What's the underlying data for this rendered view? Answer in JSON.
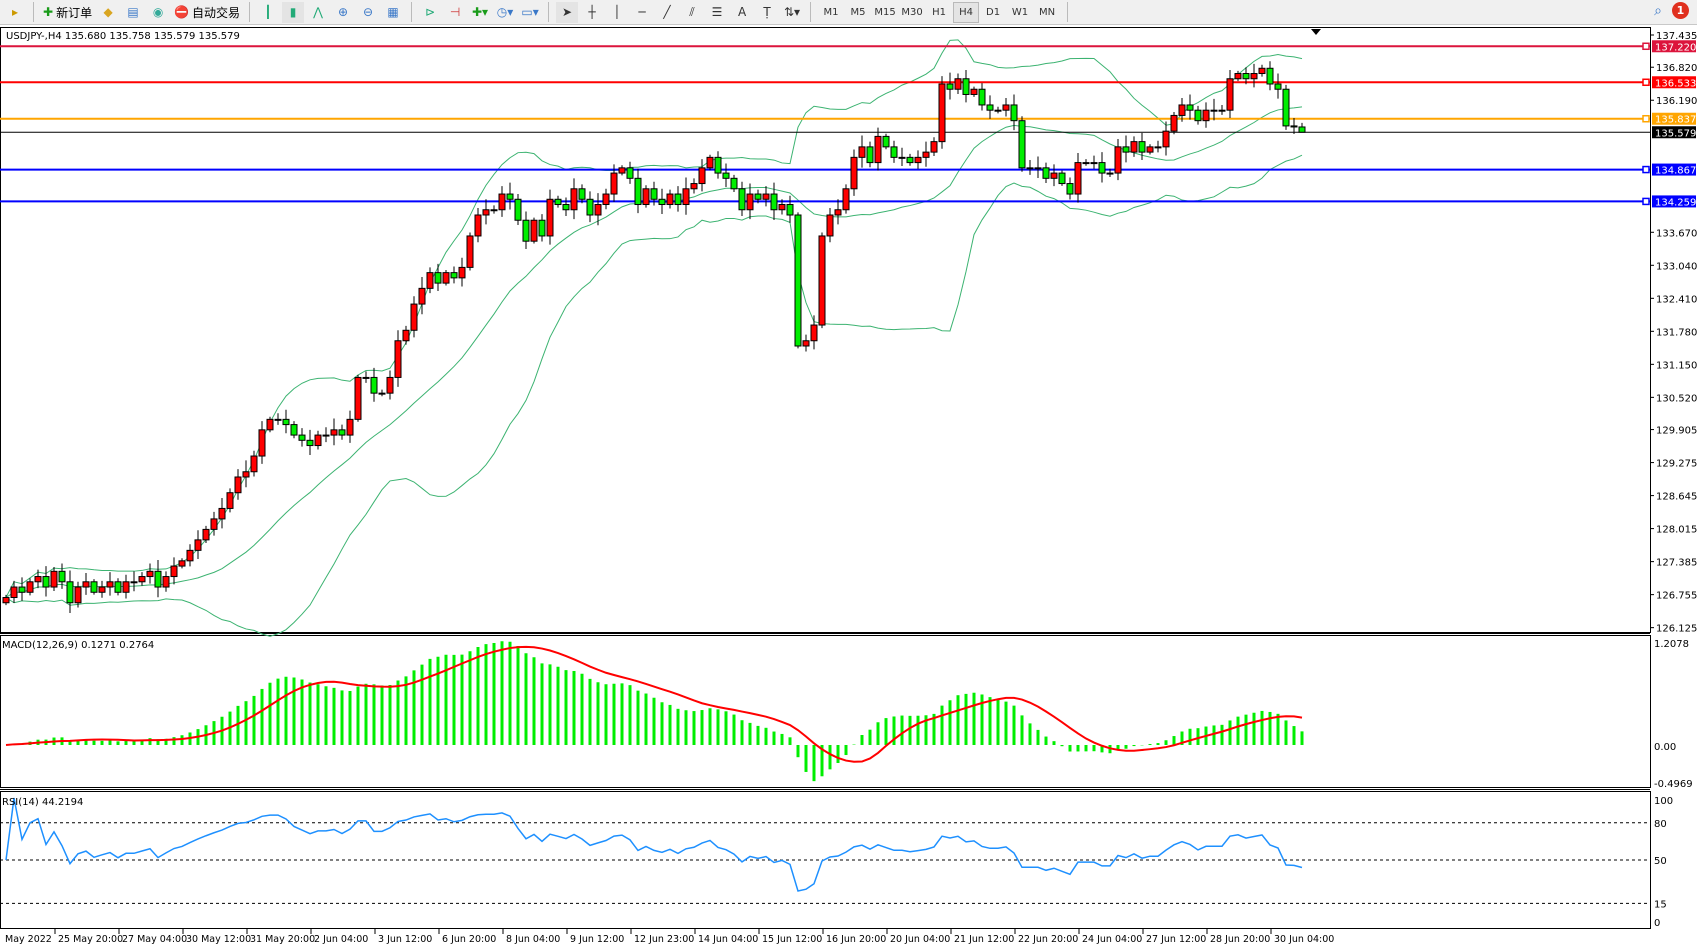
{
  "toolbar": {
    "new_order": "新订单",
    "auto_trading": "自动交易",
    "timeframes": [
      "M1",
      "M5",
      "M15",
      "M30",
      "H1",
      "H4",
      "D1",
      "W1",
      "MN"
    ],
    "active_timeframe": "H4",
    "notification_count": "1"
  },
  "chart": {
    "header": "USDJPY-,H4  135.680 135.758 135.579 135.579",
    "symbol": "USDJPY-",
    "period": "H4",
    "colors": {
      "bull": "#ff0000",
      "bear": "#00ee00",
      "bands": "#3cb371",
      "macd_bars": "#00ee00",
      "macd_signal": "#ff0000",
      "rsi": "#1e90ff"
    }
  },
  "chart_data": [
    {
      "type": "candlestick",
      "last_bar": {
        "open": 135.68,
        "high": 135.758,
        "low": 135.579,
        "close": 135.579
      },
      "closes": [
        126.7,
        126.9,
        126.8,
        127.0,
        127.1,
        126.9,
        127.2,
        127.0,
        126.6,
        126.9,
        127.0,
        126.8,
        126.9,
        127.0,
        126.8,
        127.0,
        127.0,
        127.1,
        127.2,
        126.9,
        127.1,
        127.3,
        127.4,
        127.6,
        127.8,
        128.0,
        128.2,
        128.4,
        128.7,
        129.0,
        129.1,
        129.4,
        129.9,
        130.1,
        130.1,
        130.0,
        129.8,
        129.7,
        129.6,
        129.8,
        129.8,
        129.9,
        129.8,
        130.1,
        130.9,
        130.9,
        130.6,
        130.6,
        130.9,
        131.6,
        131.8,
        132.3,
        132.6,
        132.9,
        132.7,
        132.9,
        132.8,
        133.0,
        133.6,
        134.0,
        134.1,
        134.1,
        134.4,
        134.3,
        133.9,
        133.5,
        133.9,
        133.6,
        134.3,
        134.2,
        134.1,
        134.5,
        134.3,
        134.0,
        134.2,
        134.4,
        134.8,
        134.9,
        134.7,
        134.2,
        134.5,
        134.3,
        134.2,
        134.4,
        134.2,
        134.5,
        134.6,
        134.9,
        135.1,
        134.8,
        134.7,
        134.5,
        134.1,
        134.4,
        134.3,
        134.4,
        134.1,
        134.2,
        134.0,
        131.5,
        131.6,
        131.9,
        133.6,
        134.0,
        134.1,
        134.5,
        135.1,
        135.3,
        135.0,
        135.5,
        135.3,
        135.1,
        135.1,
        135.0,
        135.1,
        135.2,
        135.4,
        136.5,
        136.4,
        136.6,
        136.3,
        136.4,
        136.1,
        136.0,
        136.0,
        136.1,
        135.8,
        134.9,
        134.9,
        134.9,
        134.7,
        134.8,
        134.6,
        134.4,
        135.0,
        135.0,
        135.0,
        134.8,
        134.8,
        135.3,
        135.2,
        135.4,
        135.2,
        135.3,
        135.3,
        135.6,
        135.9,
        136.1,
        136.0,
        135.8,
        136.0,
        136.0,
        136.0,
        136.6,
        136.7,
        136.6,
        136.7,
        136.8,
        136.5,
        136.4,
        135.7,
        135.68,
        135.579
      ],
      "ylim": [
        126.125,
        137.435
      ],
      "y_ticks": [
        "137.435",
        "136.820",
        "136.190",
        "133.670",
        "133.040",
        "132.410",
        "131.780",
        "131.150",
        "130.520",
        "129.905",
        "129.275",
        "128.645",
        "128.015",
        "127.385",
        "126.755",
        "126.125"
      ],
      "x_tick_labels": [
        "May 2022",
        "25 May 20:00",
        "27 May 04:00",
        "30 May 12:00",
        "31 May 20:00",
        "2 Jun 04:00",
        "3 Jun 12:00",
        "6 Jun 20:00",
        "8 Jun 04:00",
        "9 Jun 12:00",
        "12 Jun 23:00",
        "14 Jun 04:00",
        "15 Jun 12:00",
        "16 Jun 20:00",
        "20 Jun 04:00",
        "21 Jun 12:00",
        "22 Jun 20:00",
        "24 Jun 04:00",
        "27 Jun 12:00",
        "28 Jun 20:00",
        "30 Jun 04:00"
      ],
      "indicator": "Bollinger Bands",
      "horizontal_lines": [
        {
          "price": "137.220",
          "color": "#dc143c"
        },
        {
          "price": "136.533",
          "color": "#ff0000"
        },
        {
          "price": "135.837",
          "color": "#ffa500"
        },
        {
          "price": "135.579",
          "color": "#000000"
        },
        {
          "price": "134.867",
          "color": "#0000ff"
        },
        {
          "price": "134.259",
          "color": "#0000ff"
        }
      ]
    },
    {
      "type": "bar+line",
      "title": "MACD(12,26,9) 0.1271 0.2764",
      "ylim": [
        -0.4969,
        1.2078
      ],
      "y_ticks": [
        "1.2078",
        "0.00",
        "-0.4969"
      ]
    },
    {
      "type": "line",
      "title": "RSI(14) 44.2194",
      "ylim": [
        0,
        100
      ],
      "y_ticks": [
        "100",
        "80",
        "50",
        "15",
        "0"
      ],
      "levels": [
        80,
        50,
        15
      ]
    }
  ]
}
